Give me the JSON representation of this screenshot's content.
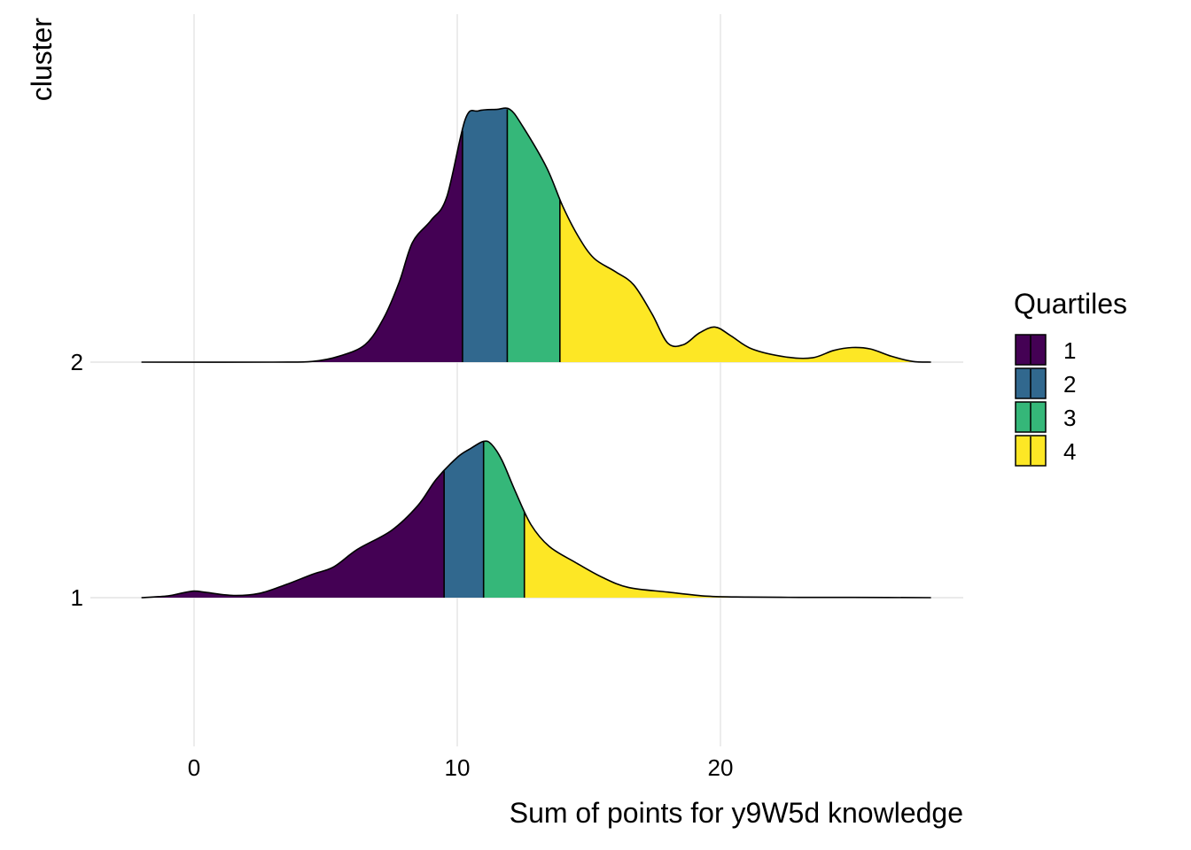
{
  "chart_data": {
    "type": "ridgeline",
    "xlabel": "Sum of points for y9W5d knowledge",
    "ylabel": "cluster",
    "xlim": [
      -5,
      29
    ],
    "x_ticks": [
      0,
      10,
      20
    ],
    "y_categories": [
      "1",
      "2"
    ],
    "grid": true,
    "legend": {
      "title": "Quartiles",
      "placement": "right",
      "items": [
        {
          "label": "1",
          "color": "#440154"
        },
        {
          "label": "2",
          "color": "#31688E"
        },
        {
          "label": "3",
          "color": "#35B779"
        },
        {
          "label": "4",
          "color": "#FDE725"
        }
      ]
    },
    "series": [
      {
        "category": "1",
        "quartile_cutoffs": [
          9.5,
          11,
          12.55
        ],
        "density": [
          [
            -2,
            0
          ],
          [
            -1,
            0.012
          ],
          [
            -0.5,
            0.03
          ],
          [
            0,
            0.045
          ],
          [
            0.5,
            0.035
          ],
          [
            1.5,
            0.015
          ],
          [
            2.5,
            0.03
          ],
          [
            3.5,
            0.09
          ],
          [
            4.5,
            0.16
          ],
          [
            5.3,
            0.21
          ],
          [
            6.2,
            0.33
          ],
          [
            7.5,
            0.46
          ],
          [
            8.5,
            0.63
          ],
          [
            9.2,
            0.81
          ],
          [
            10,
            0.96
          ],
          [
            10.5,
            1.02
          ],
          [
            11,
            1.07
          ],
          [
            11.3,
            1.05
          ],
          [
            11.7,
            0.94
          ],
          [
            12.2,
            0.73
          ],
          [
            12.8,
            0.5
          ],
          [
            13.5,
            0.35
          ],
          [
            14.5,
            0.24
          ],
          [
            15.5,
            0.14
          ],
          [
            16.5,
            0.07
          ],
          [
            18,
            0.038
          ],
          [
            19.5,
            0.01
          ],
          [
            21,
            0.004
          ],
          [
            23,
            0.002
          ],
          [
            25,
            0.002
          ],
          [
            28,
            0
          ]
        ]
      },
      {
        "category": "2",
        "quartile_cutoffs": [
          10.2,
          11.9,
          13.9
        ],
        "density": [
          [
            -2,
            0
          ],
          [
            3,
            0
          ],
          [
            4.5,
            0.005
          ],
          [
            5.5,
            0.04
          ],
          [
            6.5,
            0.12
          ],
          [
            7.2,
            0.3
          ],
          [
            7.8,
            0.55
          ],
          [
            8.3,
            0.82
          ],
          [
            9,
            0.97
          ],
          [
            9.6,
            1.13
          ],
          [
            10.3,
            1.66
          ],
          [
            10.8,
            1.72
          ],
          [
            11.5,
            1.73
          ],
          [
            12,
            1.73
          ],
          [
            12.5,
            1.61
          ],
          [
            13.4,
            1.33
          ],
          [
            14,
            1.07
          ],
          [
            14.6,
            0.86
          ],
          [
            15.2,
            0.71
          ],
          [
            16,
            0.62
          ],
          [
            16.7,
            0.53
          ],
          [
            17.4,
            0.33
          ],
          [
            18,
            0.13
          ],
          [
            18.6,
            0.12
          ],
          [
            19.2,
            0.2
          ],
          [
            19.8,
            0.24
          ],
          [
            20.4,
            0.18
          ],
          [
            21.2,
            0.09
          ],
          [
            22.5,
            0.035
          ],
          [
            23.5,
            0.03
          ],
          [
            24.3,
            0.08
          ],
          [
            25,
            0.1
          ],
          [
            25.7,
            0.09
          ],
          [
            26.5,
            0.04
          ],
          [
            27.3,
            0.005
          ],
          [
            28,
            0
          ]
        ]
      }
    ]
  }
}
